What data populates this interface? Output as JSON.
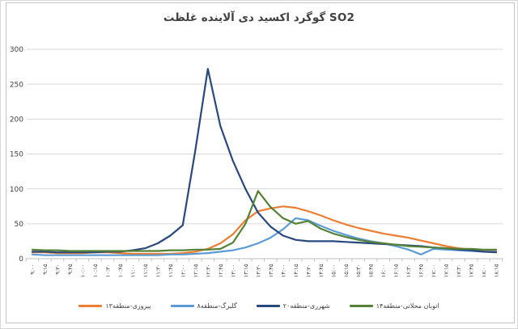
{
  "title_display": "غلظت‎ آلاینده‎ دی‎ اکسید‎ گوگرد‎ SO2",
  "chart_data": {
    "type": "line",
    "title": "غلظت آلاینده دی اکسید گوگرد SO2",
    "xlabel": "",
    "ylabel": "",
    "ylim": [
      0,
      300
    ],
    "y_ticks": [
      0,
      50,
      100,
      150,
      200,
      250,
      300
    ],
    "grid": true,
    "legend_position": "bottom",
    "x": [
      "۹:۰۰",
      "۹:۱۵",
      "۹:۳۰",
      "۹:۴۵",
      "۱۰:۰۰",
      "۱۰:۱۵",
      "۱۰:۳۰",
      "۱۰:۴۵",
      "۱۱:۰۰",
      "۱۱:۱۵",
      "۱۱:۳۰",
      "۱۱:۴۵",
      "۱۲:۰۰",
      "۱۲:۱۵",
      "۱۲:۳۰",
      "۱۲:۴۵",
      "۱۳:۰۰",
      "۱۳:۱۵",
      "۱۳:۳۰",
      "۱۳:۴۵",
      "۱۴:۰۰",
      "۱۴:۱۵",
      "۱۴:۳۰",
      "۱۴:۴۵",
      "۱۵:۰۰",
      "۱۵:۱۵",
      "۱۵:۳۰",
      "۱۵:۴۵",
      "۱۶:۰۰",
      "۱۶:۱۵",
      "۱۶:۳۰",
      "۱۶:۴۵",
      "۱۷:۰۰",
      "۱۷:۱۵",
      "۱۷:۳۰",
      "۱۷:۴۵",
      "۱۸:۰۰",
      "۱۸:۱۵"
    ],
    "series": [
      {
        "name": "پیروزی-منطقه۱۳",
        "color": "#ED7D31",
        "values": [
          9,
          9,
          8,
          8,
          8,
          9,
          9,
          8,
          7,
          7,
          7,
          7,
          8,
          10,
          14,
          22,
          35,
          55,
          68,
          72,
          75,
          73,
          68,
          62,
          55,
          49,
          44,
          40,
          36,
          33,
          30,
          26,
          22,
          18,
          15,
          13,
          12,
          11
        ]
      },
      {
        "name": "گلبرگ-منطقه۸",
        "color": "#5B9BD5",
        "values": [
          6,
          5,
          5,
          5,
          5,
          5,
          5,
          5,
          5,
          5,
          5,
          6,
          6,
          7,
          8,
          10,
          12,
          16,
          22,
          30,
          42,
          58,
          55,
          47,
          40,
          34,
          29,
          25,
          22,
          18,
          13,
          6,
          14,
          13,
          12,
          11,
          10,
          10
        ]
      },
      {
        "name": "شهرری-منطقه۲۰",
        "color": "#29487D",
        "values": [
          10,
          10,
          9,
          9,
          9,
          9,
          10,
          10,
          12,
          15,
          22,
          33,
          48,
          155,
          272,
          190,
          140,
          100,
          66,
          46,
          33,
          27,
          25,
          25,
          25,
          24,
          23,
          22,
          21,
          20,
          19,
          18,
          16,
          15,
          13,
          12,
          10,
          9
        ]
      },
      {
        "name": "اتوبان محلاتی-منطقه۱۴",
        "color": "#548235",
        "values": [
          13,
          12,
          12,
          11,
          11,
          11,
          11,
          11,
          11,
          11,
          11,
          12,
          12,
          13,
          13,
          14,
          23,
          50,
          97,
          74,
          58,
          50,
          54,
          43,
          36,
          31,
          27,
          24,
          22,
          20,
          18,
          17,
          16,
          15,
          14,
          14,
          13,
          13
        ]
      }
    ],
    "colors": {
      "gridline": "#D9D9D9",
      "axis_line": "#BFBFBF",
      "tick_label": "#404040",
      "title_text": "#414141",
      "background": "#FFFFFF"
    }
  }
}
